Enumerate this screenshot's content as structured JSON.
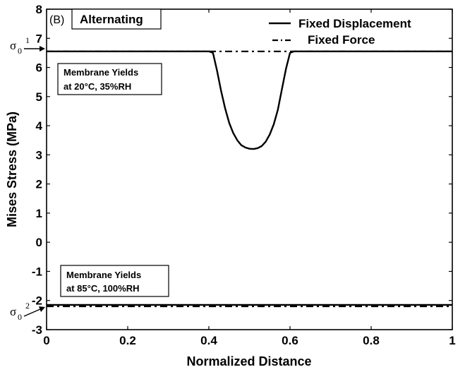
{
  "chart_data": {
    "type": "line",
    "panel_label": "(B)",
    "title": "Alternating",
    "xlabel": "Normalized Distance",
    "ylabel": "Mises Stress (MPa)",
    "xlim": [
      0,
      1
    ],
    "ylim": [
      -3,
      8
    ],
    "xticks": [
      "0",
      "0.2",
      "0.4",
      "0.6",
      "0.8",
      "1"
    ],
    "yticks": [
      "-3",
      "-2",
      "-1",
      "0",
      "1",
      "2",
      "3",
      "4",
      "5",
      "6",
      "7",
      "8"
    ],
    "grid": false,
    "legend_position": "top-right",
    "series": [
      {
        "name": "Fixed Displacement",
        "style": "solid",
        "color": "#000000",
        "segments": [
          [
            [
              0,
              6.55
            ],
            [
              0.4,
              6.55
            ],
            [
              0.41,
              6.5
            ],
            [
              0.42,
              5.9
            ],
            [
              0.43,
              5.2
            ],
            [
              0.44,
              4.6
            ],
            [
              0.45,
              4.1
            ],
            [
              0.46,
              3.75
            ],
            [
              0.47,
              3.5
            ],
            [
              0.48,
              3.33
            ],
            [
              0.49,
              3.25
            ],
            [
              0.5,
              3.21
            ],
            [
              0.51,
              3.2
            ],
            [
              0.52,
              3.23
            ],
            [
              0.53,
              3.3
            ],
            [
              0.54,
              3.45
            ],
            [
              0.55,
              3.7
            ],
            [
              0.56,
              4.05
            ],
            [
              0.57,
              4.55
            ],
            [
              0.58,
              5.25
            ],
            [
              0.59,
              5.95
            ],
            [
              0.6,
              6.5
            ],
            [
              0.61,
              6.55
            ],
            [
              1,
              6.55
            ]
          ],
          [
            [
              0,
              -2.15
            ],
            [
              1,
              -2.15
            ]
          ]
        ]
      },
      {
        "name": "Fixed Force",
        "style": "dash-dot",
        "color": "#000000",
        "segments": [
          [
            [
              0,
              6.55
            ],
            [
              1,
              6.55
            ]
          ],
          [
            [
              0,
              -2.2
            ],
            [
              1,
              -2.2
            ]
          ]
        ]
      }
    ],
    "annotations": [
      {
        "lines": [
          "Membrane Yields",
          "at 20°C, 35%RH"
        ]
      },
      {
        "lines": [
          "Membrane Yields",
          "at 85°C, 100%RH"
        ]
      }
    ],
    "markers": [
      {
        "symbol": "σ",
        "sub": "0",
        "sup": "1",
        "y": 6.55
      },
      {
        "symbol": "σ",
        "sub": "0",
        "sup": "2",
        "y": -2.2
      }
    ]
  }
}
